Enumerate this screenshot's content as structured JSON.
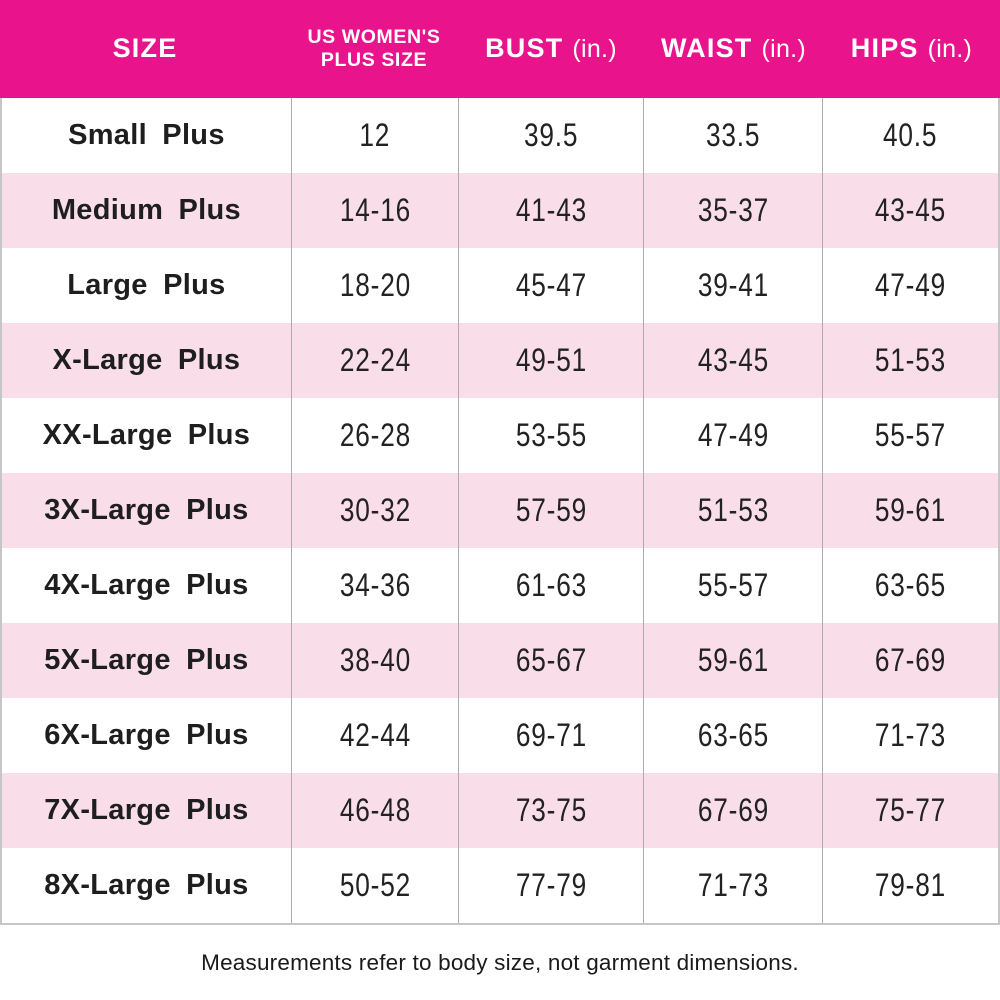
{
  "header": {
    "size": "SIZE",
    "us_plus_line1": "US WOMEN'S",
    "us_plus_line2": "PLUS SIZE",
    "bust": "BUST",
    "waist": "WAIST",
    "hips": "HIPS",
    "unit": "(in.)"
  },
  "rows": [
    [
      "Small Plus",
      "12",
      "39.5",
      "33.5",
      "40.5"
    ],
    [
      "Medium Plus",
      "14-16",
      "41-43",
      "35-37",
      "43-45"
    ],
    [
      "Large Plus",
      "18-20",
      "45-47",
      "39-41",
      "47-49"
    ],
    [
      "X-Large Plus",
      "22-24",
      "49-51",
      "43-45",
      "51-53"
    ],
    [
      "XX-Large Plus",
      "26-28",
      "53-55",
      "47-49",
      "55-57"
    ],
    [
      "3X-Large Plus",
      "30-32",
      "57-59",
      "51-53",
      "59-61"
    ],
    [
      "4X-Large Plus",
      "34-36",
      "61-63",
      "55-57",
      "63-65"
    ],
    [
      "5X-Large Plus",
      "38-40",
      "65-67",
      "59-61",
      "67-69"
    ],
    [
      "6X-Large Plus",
      "42-44",
      "69-71",
      "63-65",
      "71-73"
    ],
    [
      "7X-Large Plus",
      "46-48",
      "73-75",
      "67-69",
      "75-77"
    ],
    [
      "8X-Large Plus",
      "50-52",
      "77-79",
      "71-73",
      "79-81"
    ]
  ],
  "footnote": "Measurements refer to body size, not garment dimensions.",
  "colors": {
    "header_bg": "#E9148C",
    "header_text": "#FFFFFF",
    "stripe_bg": "#F9DEEA",
    "grid_line": "#ACACAC",
    "outer_border": "#C6C6C6",
    "body_text": "#1E1E1E"
  },
  "chart_data": {
    "type": "table",
    "title": "Women's plus size chart",
    "columns": [
      "SIZE",
      "US WOMEN'S PLUS SIZE",
      "BUST (in.)",
      "WAIST (in.)",
      "HIPS (in.)"
    ],
    "rows": [
      [
        "Small Plus",
        "12",
        "39.5",
        "33.5",
        "40.5"
      ],
      [
        "Medium Plus",
        "14-16",
        "41-43",
        "35-37",
        "43-45"
      ],
      [
        "Large Plus",
        "18-20",
        "45-47",
        "39-41",
        "47-49"
      ],
      [
        "X-Large Plus",
        "22-24",
        "49-51",
        "43-45",
        "51-53"
      ],
      [
        "XX-Large Plus",
        "26-28",
        "53-55",
        "47-49",
        "55-57"
      ],
      [
        "3X-Large Plus",
        "30-32",
        "57-59",
        "51-53",
        "59-61"
      ],
      [
        "4X-Large Plus",
        "34-36",
        "61-63",
        "55-57",
        "63-65"
      ],
      [
        "5X-Large Plus",
        "38-40",
        "65-67",
        "59-61",
        "67-69"
      ],
      [
        "6X-Large Plus",
        "42-44",
        "69-71",
        "63-65",
        "71-73"
      ],
      [
        "7X-Large Plus",
        "46-48",
        "73-75",
        "67-69",
        "75-77"
      ],
      [
        "8X-Large Plus",
        "50-52",
        "77-79",
        "71-73",
        "79-81"
      ]
    ],
    "footnote": "Measurements refer to body size, not garment dimensions.",
    "layout": {
      "striped_rows": true,
      "stripe_color": "#F9DEEA",
      "header_color": "#E9148C",
      "vertical_gridlines": true,
      "horizontal_gridlines": false
    }
  }
}
